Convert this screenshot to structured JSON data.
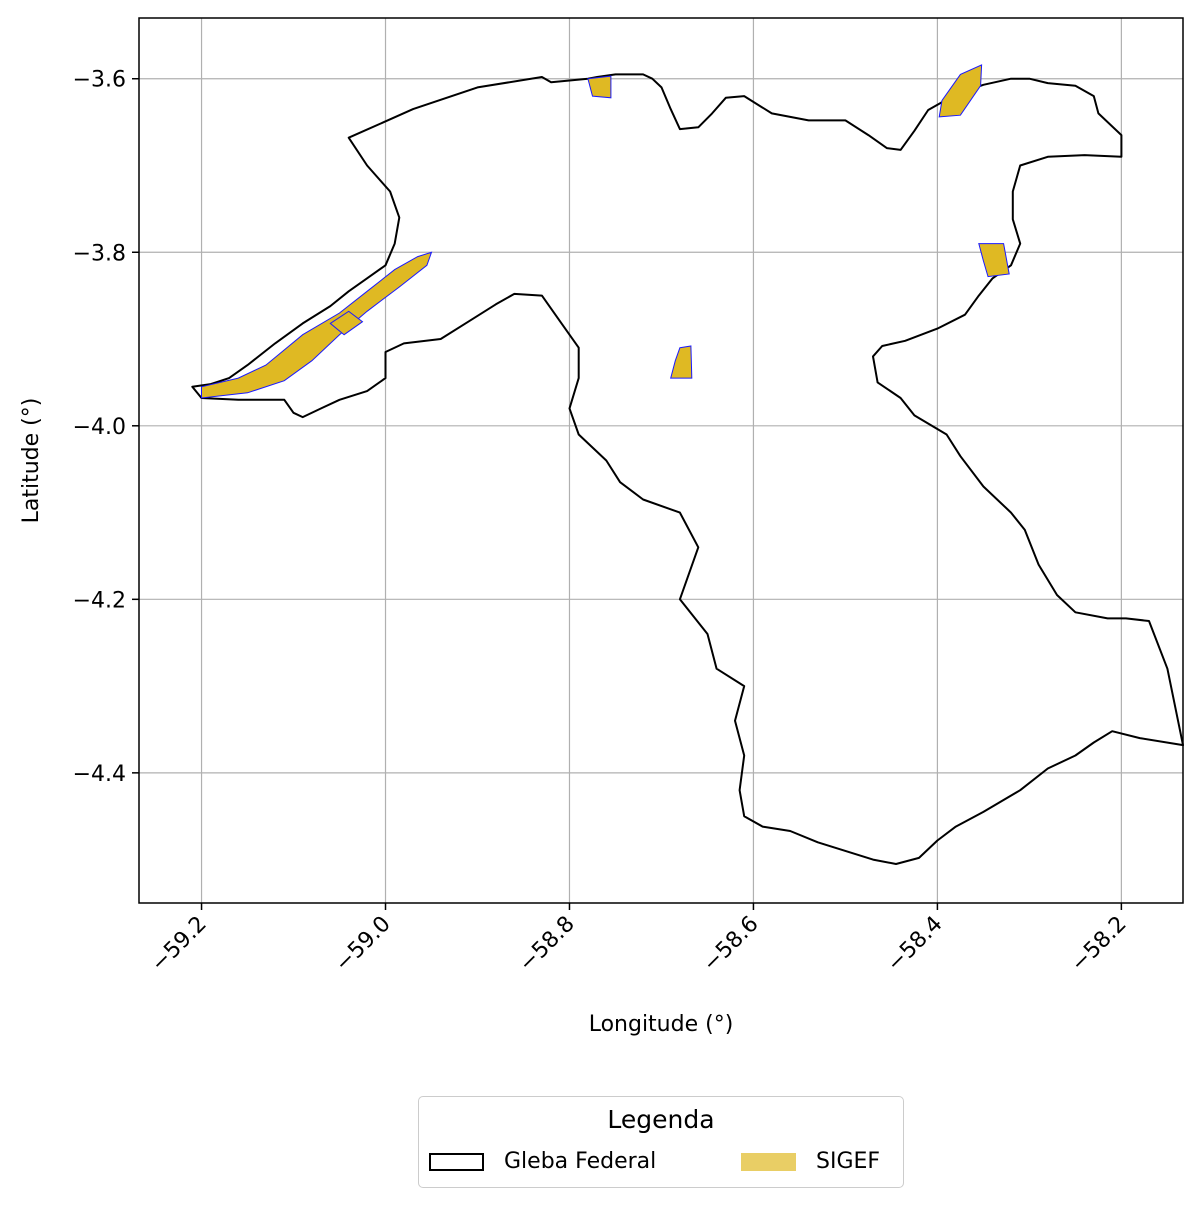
{
  "chart_data": {
    "type": "map",
    "xlabel": "Longitude (°)",
    "ylabel": "Latitude (°)",
    "xlim": [
      -59.268,
      -58.133
    ],
    "ylim": [
      -4.55,
      -3.53
    ],
    "xticks": [
      -59.2,
      -59.0,
      -58.8,
      -58.6,
      -58.4,
      -58.2
    ],
    "xtick_labels": [
      "−59.2",
      "−59.0",
      "−58.8",
      "−58.6",
      "−58.4",
      "−58.2"
    ],
    "yticks": [
      -3.6,
      -3.8,
      -4.0,
      -4.2,
      -4.4
    ],
    "ytick_labels": [
      "−3.6",
      "−3.8",
      "−4.0",
      "−4.2",
      "−4.4"
    ],
    "grid": true,
    "legend_position": "bottom-center",
    "layers": [
      {
        "name": "Gleba Federal",
        "style": "outline",
        "edge_color": "#000000",
        "polygons": [
          [
            [
              -59.21,
              -3.955
            ],
            [
              -59.19,
              -3.952
            ],
            [
              -59.17,
              -3.945
            ],
            [
              -59.15,
              -3.93
            ],
            [
              -59.12,
              -3.905
            ],
            [
              -59.09,
              -3.882
            ],
            [
              -59.06,
              -3.862
            ],
            [
              -59.04,
              -3.845
            ],
            [
              -59.02,
              -3.83
            ],
            [
              -59.0,
              -3.815
            ],
            [
              -58.99,
              -3.79
            ],
            [
              -58.985,
              -3.76
            ],
            [
              -58.995,
              -3.73
            ],
            [
              -59.02,
              -3.7
            ],
            [
              -59.04,
              -3.668
            ],
            [
              -58.97,
              -3.635
            ],
            [
              -58.9,
              -3.61
            ],
            [
              -58.83,
              -3.598
            ],
            [
              -58.82,
              -3.604
            ],
            [
              -58.8,
              -3.602
            ],
            [
              -58.78,
              -3.6
            ],
            [
              -58.77,
              -3.598
            ],
            [
              -58.75,
              -3.595
            ],
            [
              -58.72,
              -3.595
            ],
            [
              -58.71,
              -3.6
            ],
            [
              -58.7,
              -3.61
            ],
            [
              -58.69,
              -3.635
            ],
            [
              -58.68,
              -3.658
            ],
            [
              -58.66,
              -3.656
            ],
            [
              -58.645,
              -3.64
            ],
            [
              -58.63,
              -3.622
            ],
            [
              -58.61,
              -3.62
            ],
            [
              -58.58,
              -3.64
            ],
            [
              -58.54,
              -3.648
            ],
            [
              -58.5,
              -3.648
            ],
            [
              -58.475,
              -3.665
            ],
            [
              -58.455,
              -3.68
            ],
            [
              -58.44,
              -3.682
            ],
            [
              -58.425,
              -3.66
            ],
            [
              -58.41,
              -3.636
            ],
            [
              -58.38,
              -3.618
            ],
            [
              -58.35,
              -3.607
            ],
            [
              -58.32,
              -3.6
            ],
            [
              -58.3,
              -3.6
            ],
            [
              -58.28,
              -3.605
            ],
            [
              -58.25,
              -3.608
            ],
            [
              -58.23,
              -3.62
            ],
            [
              -58.225,
              -3.64
            ],
            [
              -58.2,
              -3.665
            ],
            [
              -58.2,
              -3.69
            ],
            [
              -58.24,
              -3.688
            ],
            [
              -58.28,
              -3.69
            ],
            [
              -58.31,
              -3.7
            ],
            [
              -58.318,
              -3.73
            ],
            [
              -58.318,
              -3.762
            ],
            [
              -58.31,
              -3.79
            ],
            [
              -58.32,
              -3.815
            ],
            [
              -58.34,
              -3.83
            ],
            [
              -58.355,
              -3.85
            ],
            [
              -58.37,
              -3.872
            ],
            [
              -58.4,
              -3.888
            ],
            [
              -58.435,
              -3.902
            ],
            [
              -58.46,
              -3.908
            ],
            [
              -58.47,
              -3.92
            ],
            [
              -58.465,
              -3.95
            ],
            [
              -58.44,
              -3.968
            ],
            [
              -58.425,
              -3.988
            ],
            [
              -58.39,
              -4.01
            ],
            [
              -58.375,
              -4.035
            ],
            [
              -58.35,
              -4.07
            ],
            [
              -58.32,
              -4.1
            ],
            [
              -58.305,
              -4.12
            ],
            [
              -58.29,
              -4.16
            ],
            [
              -58.27,
              -4.195
            ],
            [
              -58.25,
              -4.215
            ],
            [
              -58.215,
              -4.222
            ],
            [
              -58.195,
              -4.222
            ],
            [
              -58.17,
              -4.225
            ],
            [
              -58.15,
              -4.28
            ],
            [
              -58.133,
              -4.368
            ],
            [
              -58.18,
              -4.36
            ],
            [
              -58.21,
              -4.352
            ],
            [
              -58.23,
              -4.365
            ],
            [
              -58.25,
              -4.38
            ],
            [
              -58.28,
              -4.395
            ],
            [
              -58.31,
              -4.42
            ],
            [
              -58.35,
              -4.445
            ],
            [
              -58.38,
              -4.462
            ],
            [
              -58.4,
              -4.478
            ],
            [
              -58.42,
              -4.498
            ],
            [
              -58.445,
              -4.505
            ],
            [
              -58.47,
              -4.5
            ],
            [
              -58.5,
              -4.49
            ],
            [
              -58.53,
              -4.48
            ],
            [
              -58.56,
              -4.467
            ],
            [
              -58.59,
              -4.462
            ],
            [
              -58.61,
              -4.45
            ],
            [
              -58.615,
              -4.42
            ],
            [
              -58.61,
              -4.38
            ],
            [
              -58.62,
              -4.34
            ],
            [
              -58.61,
              -4.3
            ],
            [
              -58.64,
              -4.28
            ],
            [
              -58.65,
              -4.24
            ],
            [
              -58.68,
              -4.2
            ],
            [
              -58.66,
              -4.14
            ],
            [
              -58.68,
              -4.1
            ],
            [
              -58.72,
              -4.085
            ],
            [
              -58.745,
              -4.065
            ],
            [
              -58.76,
              -4.04
            ],
            [
              -58.79,
              -4.01
            ],
            [
              -58.8,
              -3.98
            ],
            [
              -58.79,
              -3.945
            ],
            [
              -58.79,
              -3.91
            ],
            [
              -58.81,
              -3.88
            ],
            [
              -58.83,
              -3.85
            ],
            [
              -58.86,
              -3.848
            ],
            [
              -58.88,
              -3.86
            ],
            [
              -58.91,
              -3.88
            ],
            [
              -58.94,
              -3.9
            ],
            [
              -58.98,
              -3.905
            ],
            [
              -59.0,
              -3.915
            ],
            [
              -59.0,
              -3.945
            ],
            [
              -59.02,
              -3.96
            ],
            [
              -59.05,
              -3.97
            ],
            [
              -59.07,
              -3.98
            ],
            [
              -59.09,
              -3.99
            ],
            [
              -59.1,
              -3.985
            ],
            [
              -59.11,
              -3.97
            ],
            [
              -59.16,
              -3.97
            ],
            [
              -59.2,
              -3.968
            ],
            [
              -59.21,
              -3.955
            ]
          ]
        ]
      },
      {
        "name": "SIGEF",
        "style": "fill",
        "face_color": "#dfb923",
        "edge_color": "#1a1aff",
        "polygons": [
          [
            [
              -59.2,
              -3.955
            ],
            [
              -59.16,
              -3.945
            ],
            [
              -59.13,
              -3.93
            ],
            [
              -59.09,
              -3.895
            ],
            [
              -59.05,
              -3.87
            ],
            [
              -59.02,
              -3.845
            ],
            [
              -58.99,
              -3.82
            ],
            [
              -58.965,
              -3.805
            ],
            [
              -58.95,
              -3.8
            ],
            [
              -58.955,
              -3.815
            ],
            [
              -58.985,
              -3.84
            ],
            [
              -59.02,
              -3.868
            ],
            [
              -59.05,
              -3.895
            ],
            [
              -59.08,
              -3.925
            ],
            [
              -59.11,
              -3.948
            ],
            [
              -59.15,
              -3.962
            ],
            [
              -59.2,
              -3.968
            ]
          ],
          [
            [
              -59.06,
              -3.882
            ],
            [
              -59.04,
              -3.868
            ],
            [
              -59.025,
              -3.88
            ],
            [
              -59.045,
              -3.895
            ]
          ],
          [
            [
              -58.78,
              -3.6
            ],
            [
              -58.755,
              -3.597
            ],
            [
              -58.755,
              -3.622
            ],
            [
              -58.775,
              -3.62
            ]
          ],
          [
            [
              -58.398,
              -3.644
            ],
            [
              -58.375,
              -3.642
            ],
            [
              -58.353,
              -3.608
            ],
            [
              -58.352,
              -3.584
            ],
            [
              -58.375,
              -3.595
            ],
            [
              -58.395,
              -3.625
            ]
          ],
          [
            [
              -58.355,
              -3.79
            ],
            [
              -58.328,
              -3.79
            ],
            [
              -58.322,
              -3.825
            ],
            [
              -58.345,
              -3.828
            ],
            [
              -58.35,
              -3.81
            ]
          ],
          [
            [
              -58.68,
              -3.91
            ],
            [
              -58.668,
              -3.908
            ],
            [
              -58.667,
              -3.945
            ],
            [
              -58.69,
              -3.945
            ],
            [
              -58.685,
              -3.925
            ]
          ]
        ]
      }
    ]
  },
  "legend": {
    "title": "Legenda",
    "items": [
      "Gleba Federal",
      "SIGEF"
    ]
  }
}
